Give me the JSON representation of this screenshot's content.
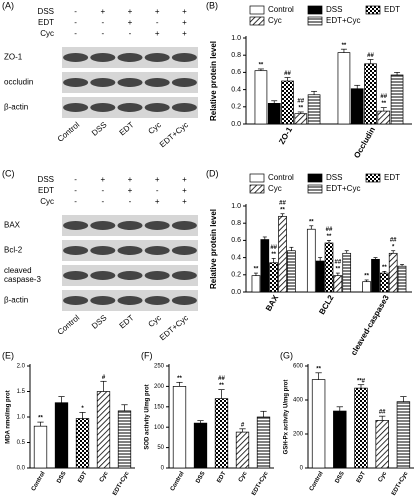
{
  "chart_data": [
    {
      "type": "bar",
      "title": "(B)",
      "ylabel": "Relative protein level",
      "categories": [
        "ZO-1",
        "Occludin"
      ],
      "ylim": [
        0,
        1.0
      ],
      "yticks": [
        {
          "value": 0,
          "label": "0.0"
        },
        {
          "value": 0.2,
          "label": "0.2"
        },
        {
          "value": 0.4,
          "label": "0.4"
        },
        {
          "value": 0.6,
          "label": "0.6"
        },
        {
          "value": 0.8,
          "label": "0.8"
        },
        {
          "value": 1.0,
          "label": "1.0"
        }
      ],
      "series": [
        {
          "name": "Control",
          "color": "#000000",
          "pattern": "none",
          "values": [
            0.62,
            0.83
          ],
          "errors": [
            0.02,
            0.04
          ],
          "annotations": [
            "**",
            "**"
          ]
        },
        {
          "name": "DSS",
          "color": "#000000",
          "pattern": "solid",
          "values": [
            0.24,
            0.41
          ],
          "errors": [
            0.03,
            0.04
          ],
          "annotations": [
            null,
            null
          ]
        },
        {
          "name": "EDT",
          "color": "#000000",
          "pattern": "checker",
          "values": [
            0.5,
            0.7
          ],
          "errors": [
            0.04,
            0.05
          ],
          "annotations": [
            "##",
            "##"
          ]
        },
        {
          "name": "Cyc",
          "color": "#000000",
          "pattern": "diagonal",
          "values": [
            0.12,
            0.15
          ],
          "errors": [
            0.02,
            0.04
          ],
          "annotations": [
            [
              "##",
              "**"
            ],
            [
              "##",
              "**"
            ]
          ]
        },
        {
          "name": "EDT+Cyc",
          "color": "#000000",
          "pattern": "horizontal",
          "values": [
            0.34,
            0.57
          ],
          "errors": [
            0.04,
            0.03
          ],
          "annotations": [
            null,
            null
          ]
        }
      ]
    },
    {
      "type": "bar",
      "title": "(D)",
      "ylabel": "Relative protein level",
      "categories": [
        "BAX",
        "BCL2",
        "cleaved-caspase3"
      ],
      "ylim": [
        0,
        1.0
      ],
      "yticks": [
        {
          "value": 0,
          "label": "0.0"
        },
        {
          "value": 0.2,
          "label": "0.2"
        },
        {
          "value": 0.4,
          "label": "0.4"
        },
        {
          "value": 0.6,
          "label": "0.6"
        },
        {
          "value": 0.8,
          "label": "0.8"
        },
        {
          "value": 1.0,
          "label": "1.0"
        }
      ],
      "series": [
        {
          "name": "Control",
          "color": "#000000",
          "pattern": "none",
          "values": [
            0.19,
            0.73,
            0.12
          ],
          "errors": [
            0.03,
            0.04,
            0.02
          ],
          "annotations": [
            "**",
            "**",
            "**"
          ]
        },
        {
          "name": "DSS",
          "color": "#000000",
          "pattern": "solid",
          "values": [
            0.61,
            0.36,
            0.38
          ],
          "errors": [
            0.03,
            0.04,
            0.02
          ],
          "annotations": [
            null,
            null,
            null
          ]
        },
        {
          "name": "EDT",
          "color": "#000000",
          "pattern": "checker",
          "values": [
            0.34,
            0.57,
            0.22
          ],
          "errors": [
            0.05,
            0.03,
            0.02
          ],
          "annotations": [
            [
              "##",
              "**"
            ],
            [
              "##",
              "**"
            ],
            [
              "**"
            ]
          ]
        },
        {
          "name": "Cyc",
          "color": "#000000",
          "pattern": "diagonal",
          "values": [
            0.88,
            0.19,
            0.45
          ],
          "errors": [
            0.03,
            0.03,
            0.03
          ],
          "annotations": [
            [
              "##",
              "**"
            ],
            [
              "##",
              "**"
            ],
            [
              "##",
              "*"
            ]
          ]
        },
        {
          "name": "EDT+Cyc",
          "color": "#000000",
          "pattern": "horizontal",
          "values": [
            0.48,
            0.45,
            0.3
          ],
          "errors": [
            0.04,
            0.03,
            0.02
          ],
          "annotations": [
            null,
            null,
            null
          ]
        }
      ]
    },
    {
      "type": "bar",
      "title": "(E)",
      "ylabel": "MDA nmol/mg prot",
      "categories": [
        "Control",
        "DSS",
        "EDT",
        "Cyc",
        "EDT+Cyc"
      ],
      "patterns": [
        "none",
        "solid",
        "checker",
        "diagonal",
        "horizontal"
      ],
      "color": "#000000",
      "ylim": [
        0,
        2.0
      ],
      "yticks": [
        {
          "value": 0,
          "label": "0.0"
        },
        {
          "value": 0.5,
          "label": "0.5"
        },
        {
          "value": 1.0,
          "label": "1.0"
        },
        {
          "value": 1.5,
          "label": "1.5"
        },
        {
          "value": 2.0,
          "label": "2.0"
        }
      ],
      "values": [
        0.82,
        1.28,
        0.97,
        1.5,
        1.12
      ],
      "errors": [
        0.08,
        0.12,
        0.12,
        0.2,
        0.12
      ],
      "annotations": [
        "**",
        null,
        "*",
        "#",
        null
      ]
    },
    {
      "type": "bar",
      "title": "(F)",
      "ylabel": "SOD activity U/mg prot",
      "categories": [
        "Control",
        "DSS",
        "EDT",
        "Cyc",
        "EDT+Cyc"
      ],
      "patterns": [
        "none",
        "solid",
        "checker",
        "diagonal",
        "horizontal"
      ],
      "color": "#000000",
      "ylim": [
        0,
        250
      ],
      "yticks": [
        0,
        50,
        100,
        150,
        200,
        250
      ],
      "values": [
        200,
        110,
        170,
        88,
        125
      ],
      "errors": [
        10,
        6,
        22,
        8,
        14
      ],
      "annotations": [
        "**",
        null,
        [
          "##",
          "**"
        ],
        "#",
        null
      ]
    },
    {
      "type": "bar",
      "title": "(G)",
      "ylabel": "GSH-Px activity U/mg prot",
      "categories": [
        "Control",
        "DSS",
        "EDT",
        "Cyc",
        "EDT+Cyc"
      ],
      "patterns": [
        "none",
        "solid",
        "checker",
        "diagonal",
        "horizontal"
      ],
      "color": "#000000",
      "ylim": [
        0,
        600
      ],
      "yticks": [
        0,
        200,
        400,
        600
      ],
      "values": [
        520,
        335,
        470,
        280,
        390
      ],
      "errors": [
        40,
        25,
        20,
        25,
        30
      ],
      "annotations": [
        "**",
        null,
        "**#",
        "##",
        null
      ]
    }
  ],
  "blots": [
    {
      "title": "(A)",
      "treatments": [
        {
          "name": "DSS",
          "signs": [
            "-",
            "+",
            "+",
            "+",
            "+"
          ]
        },
        {
          "name": "EDT",
          "signs": [
            "-",
            "-",
            "+",
            "-",
            "+"
          ]
        },
        {
          "name": "Cyc",
          "signs": [
            "-",
            "-",
            "-",
            "+",
            "+"
          ]
        }
      ],
      "bands": [
        [
          "ZO-1"
        ],
        [
          "occludin"
        ],
        [
          "β-actin"
        ]
      ],
      "lanes": [
        "Control",
        "DSS",
        "EDT",
        "Cyc",
        "EDT+Cyc"
      ]
    },
    {
      "title": "(C)",
      "treatments": [
        {
          "name": "DSS",
          "signs": [
            "-",
            "+",
            "+",
            "+",
            "+"
          ]
        },
        {
          "name": "EDT",
          "signs": [
            "-",
            "-",
            "+",
            "-",
            "+"
          ]
        },
        {
          "name": "Cyc",
          "signs": [
            "-",
            "-",
            "-",
            "+",
            "+"
          ]
        }
      ],
      "bands": [
        [
          "BAX"
        ],
        [
          "Bcl-2"
        ],
        [
          "cleaved",
          "caspase-3"
        ],
        [
          "β-actin"
        ]
      ],
      "lanes": [
        "Control",
        "DSS",
        "EDT",
        "Cyc",
        "EDT+Cyc"
      ]
    }
  ]
}
